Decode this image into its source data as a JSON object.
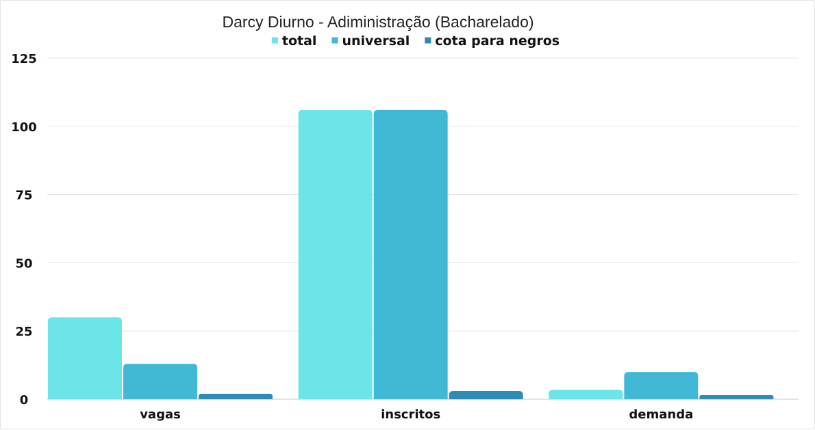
{
  "chart_data": {
    "type": "bar",
    "title": "Darcy Diurno - Adiministração (Bacharelado)",
    "categories": [
      "vagas",
      "inscritos",
      "demanda"
    ],
    "series": [
      {
        "name": "total",
        "color": "#6ce5e8",
        "values": [
          30,
          106,
          3.5
        ]
      },
      {
        "name": "universal",
        "color": "#41b8d5",
        "values": [
          13,
          106,
          10
        ]
      },
      {
        "name": "cota para negros",
        "color": "#2d8bba",
        "values": [
          2,
          3,
          1.5
        ]
      }
    ],
    "yticks": [
      "0",
      "25",
      "50",
      "75",
      "100",
      "125"
    ],
    "ylim": [
      0,
      125
    ],
    "grid": true,
    "legend_position": "top-center"
  }
}
